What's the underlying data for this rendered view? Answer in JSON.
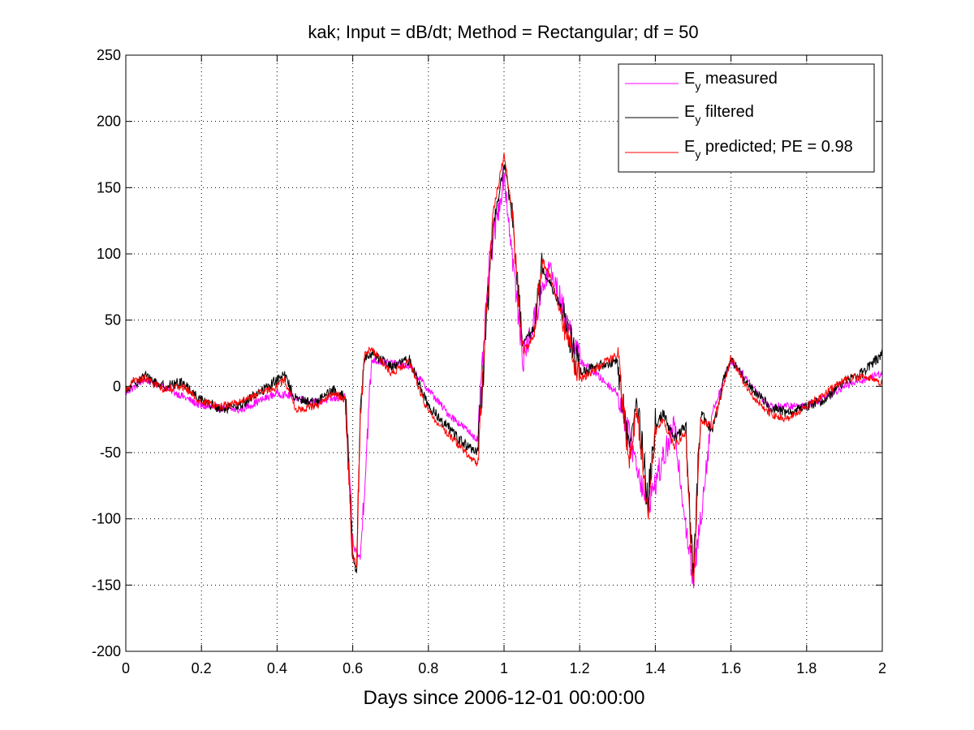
{
  "chart_data": {
    "type": "line",
    "title": "kak; Input = dB/dt; Method = Rectangular; df = 50",
    "xlabel": "Days since 2006-12-01 00:00:00",
    "ylabel": "",
    "xlim": [
      0,
      2
    ],
    "ylim": [
      -200,
      250
    ],
    "x_ticks": [
      "0",
      "0.2",
      "0.4",
      "0.6",
      "0.8",
      "1",
      "1.2",
      "1.4",
      "1.6",
      "1.8",
      "2"
    ],
    "y_ticks": [
      "250",
      "200",
      "150",
      "100",
      "50",
      "0",
      "-50",
      "-100",
      "-150",
      "-200"
    ],
    "grid": true,
    "legend_position": "top-right",
    "legend": {
      "measured": {
        "main": "E",
        "sub": "y",
        "rest": " measured"
      },
      "filtered": {
        "main": "E",
        "sub": "y",
        "rest": " filtered"
      },
      "predicted": {
        "main": "E",
        "sub": "y",
        "rest": " predicted; PE = 0.98"
      }
    },
    "series": [
      {
        "key": "measured",
        "color": "#ff00ff",
        "x": [
          0,
          0.05,
          0.1,
          0.2,
          0.3,
          0.4,
          0.5,
          0.58,
          0.6,
          0.62,
          0.65,
          0.75,
          0.85,
          0.93,
          0.96,
          1.0,
          1.05,
          1.12,
          1.2,
          1.3,
          1.38,
          1.45,
          1.5,
          1.55,
          1.6,
          1.7,
          1.8,
          1.9,
          2.0
        ],
        "y": [
          -5,
          5,
          0,
          -15,
          -18,
          -5,
          -12,
          -8,
          -120,
          -130,
          20,
          15,
          -20,
          -40,
          90,
          160,
          20,
          90,
          20,
          -5,
          -90,
          -30,
          -150,
          -20,
          20,
          -15,
          -15,
          0,
          10
        ]
      },
      {
        "key": "filtered",
        "color": "#000000",
        "x": [
          0,
          0.02,
          0.05,
          0.1,
          0.15,
          0.2,
          0.25,
          0.3,
          0.35,
          0.4,
          0.42,
          0.45,
          0.5,
          0.55,
          0.58,
          0.59,
          0.6,
          0.61,
          0.62,
          0.63,
          0.65,
          0.7,
          0.75,
          0.8,
          0.85,
          0.9,
          0.93,
          0.95,
          0.97,
          0.99,
          1.0,
          1.02,
          1.05,
          1.08,
          1.1,
          1.12,
          1.15,
          1.2,
          1.25,
          1.3,
          1.33,
          1.35,
          1.38,
          1.4,
          1.42,
          1.45,
          1.48,
          1.5,
          1.52,
          1.55,
          1.58,
          1.6,
          1.65,
          1.7,
          1.75,
          1.8,
          1.85,
          1.9,
          1.95,
          2.0
        ],
        "y": [
          -5,
          2,
          8,
          0,
          3,
          -10,
          -18,
          -15,
          -5,
          5,
          8,
          -10,
          -12,
          -3,
          -8,
          -60,
          -125,
          -140,
          -20,
          20,
          25,
          15,
          20,
          -15,
          -30,
          -45,
          -50,
          30,
          120,
          150,
          170,
          130,
          30,
          45,
          90,
          80,
          60,
          10,
          15,
          20,
          -50,
          -10,
          -85,
          -30,
          -20,
          -40,
          -30,
          -140,
          -20,
          -35,
          5,
          20,
          0,
          -15,
          -20,
          -15,
          -10,
          5,
          10,
          25
        ]
      },
      {
        "key": "predicted",
        "color": "#ff0000",
        "x": [
          0,
          0.02,
          0.05,
          0.1,
          0.15,
          0.2,
          0.25,
          0.3,
          0.35,
          0.4,
          0.42,
          0.45,
          0.5,
          0.55,
          0.58,
          0.59,
          0.6,
          0.61,
          0.62,
          0.63,
          0.65,
          0.7,
          0.75,
          0.8,
          0.85,
          0.9,
          0.93,
          0.95,
          0.97,
          0.99,
          1.0,
          1.02,
          1.05,
          1.08,
          1.1,
          1.12,
          1.15,
          1.2,
          1.25,
          1.3,
          1.33,
          1.35,
          1.38,
          1.4,
          1.42,
          1.45,
          1.48,
          1.5,
          1.52,
          1.55,
          1.58,
          1.6,
          1.65,
          1.7,
          1.75,
          1.8,
          1.85,
          1.9,
          1.95,
          2.0
        ],
        "y": [
          -3,
          4,
          6,
          -2,
          0,
          -12,
          -15,
          -12,
          -6,
          0,
          5,
          -18,
          -15,
          -5,
          -10,
          -70,
          -130,
          -135,
          -25,
          25,
          28,
          10,
          18,
          -20,
          -35,
          -50,
          -60,
          40,
          130,
          160,
          175,
          135,
          25,
          40,
          95,
          85,
          55,
          5,
          15,
          25,
          -60,
          -15,
          -95,
          -35,
          -25,
          -45,
          -35,
          -150,
          -25,
          -30,
          0,
          22,
          -5,
          -20,
          -25,
          -15,
          -5,
          5,
          8,
          3
        ]
      }
    ]
  }
}
